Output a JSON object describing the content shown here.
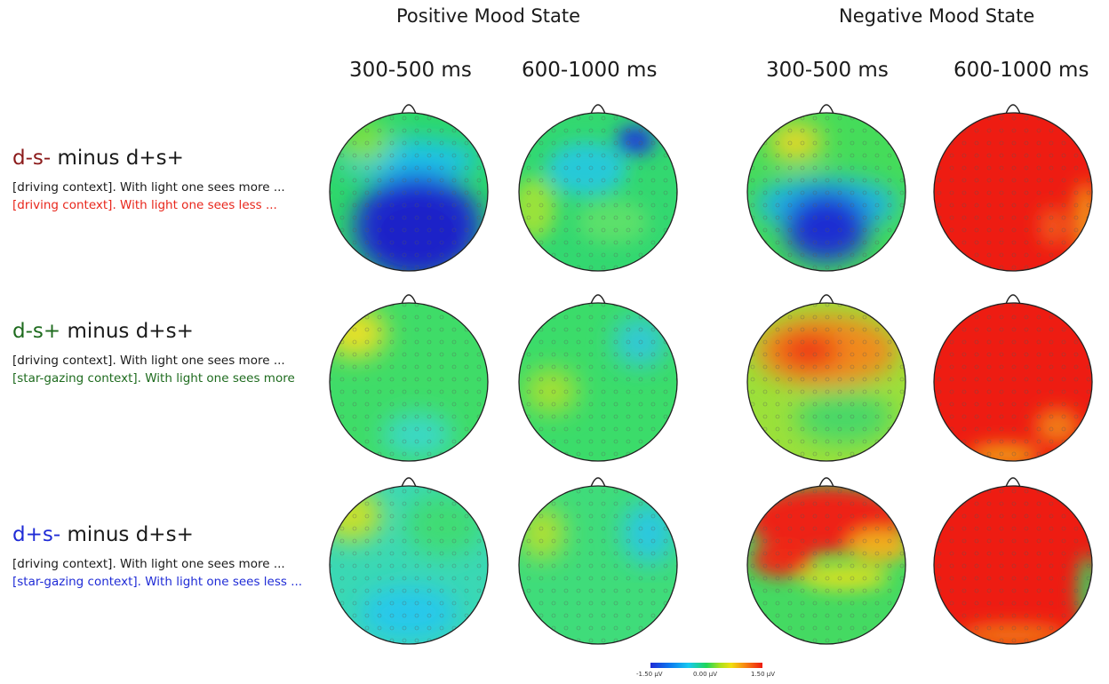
{
  "headers": {
    "positive": "Positive Mood State",
    "negative": "Negative Mood State",
    "time_windows": [
      "300-500 ms",
      "600-1000 ms",
      "300-500 ms",
      "600-1000 ms"
    ]
  },
  "rows": [
    {
      "code": "d-s-",
      "code_color": "#8b1a1a",
      "rest": " minus d+s+",
      "line1": "[driving context]. With light one sees more ...",
      "line2": "[driving context]. With light one sees less ...",
      "line2_color": "#e8261b"
    },
    {
      "code": "d-s+",
      "code_color": "#1e6b1e",
      "rest": " minus d+s+",
      "line1": "[driving context]. With light one sees more ...",
      "line2": "[star-gazing context]. With light one sees more",
      "line2_color": "#1e6b1e"
    },
    {
      "code": "d+s-",
      "code_color": "#1f2bd6",
      "rest": " minus d+s+",
      "line1": "[driving context]. With light one sees more ...",
      "line2": "[star-gazing context]. With light one sees less ...",
      "line2_color": "#1f2bd6"
    }
  ],
  "colorbar": {
    "min_label": "-1.50 µV",
    "mid_label": "0.00 µV",
    "max_label": "1.50 µV"
  }
}
